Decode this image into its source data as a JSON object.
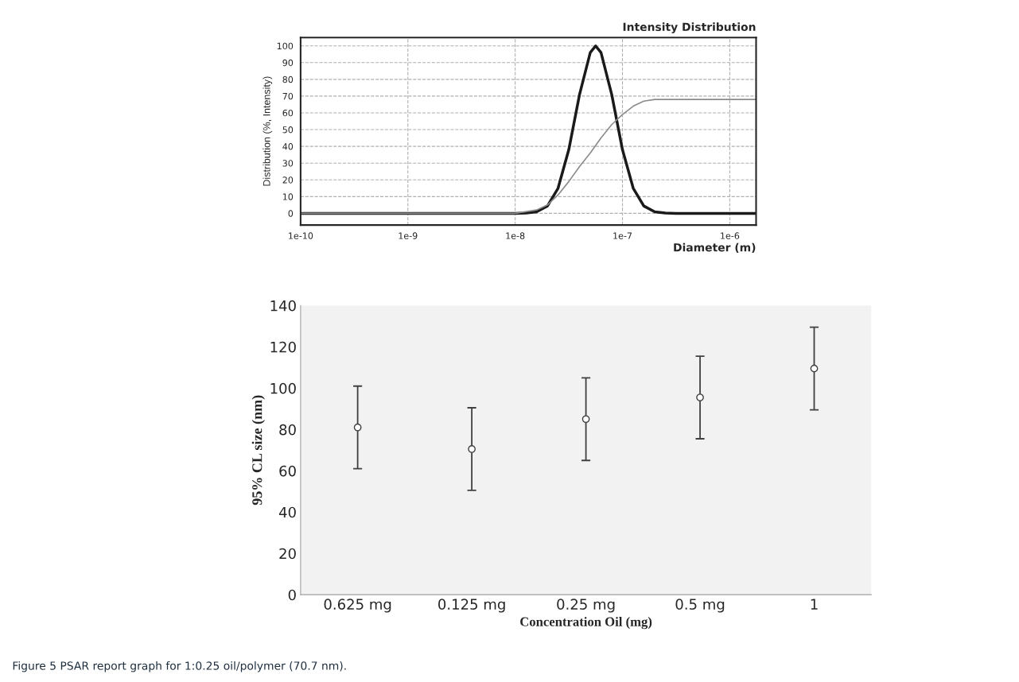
{
  "chart_data": [
    {
      "type": "line",
      "title": "Intensity Distribution",
      "xlabel": "Diameter (m)",
      "ylabel": "Distribution (%, Intensity)",
      "log": "x",
      "xlim": [
        1e-10,
        1.76e-06
      ],
      "xticks": [
        {
          "value": 1e-10,
          "label": "1e-10"
        },
        {
          "value": 1e-09,
          "label": "1e-9"
        },
        {
          "value": 1e-08,
          "label": "1e-8"
        },
        {
          "value": 1e-07,
          "label": "1e-7"
        },
        {
          "value": 1e-06,
          "label": "1e-6"
        }
      ],
      "ylim": [
        -7,
        105
      ],
      "yticks": [
        0,
        10,
        20,
        30,
        40,
        50,
        60,
        70,
        80,
        90,
        100
      ],
      "grid": true,
      "marker": "none",
      "series": [
        {
          "color": "#1a1a1a",
          "x": [
            1e-10,
            3.16e-09,
            1e-08,
            1.26e-08,
            1.58e-08,
            2e-08,
            2.51e-08,
            3.16e-08,
            3.98e-08,
            5.01e-08,
            5.62e-08,
            6.31e-08,
            7.94e-08,
            1e-07,
            1.26e-07,
            1.58e-07,
            2e-07,
            2.51e-07,
            3.16e-07,
            1.76e-06
          ],
          "values": [
            0,
            0,
            0,
            0.2,
            0.9,
            4.4,
            15,
            38,
            71,
            96,
            100,
            96,
            71,
            38,
            15,
            4.4,
            0.9,
            0.2,
            0,
            0
          ]
        },
        {
          "color": "#8c8c8c",
          "x": [
            1e-10,
            1e-08,
            1.58e-08,
            2e-08,
            2.51e-08,
            3.16e-08,
            3.98e-08,
            5.01e-08,
            6.31e-08,
            7.94e-08,
            1e-07,
            1.26e-07,
            1.58e-07,
            2e-07,
            1.76e-06
          ],
          "values": [
            0,
            0,
            2,
            5,
            11,
            19,
            28,
            36,
            45,
            53,
            59,
            64,
            67,
            68,
            68
          ]
        }
      ]
    },
    {
      "type": "scatter",
      "xlabel": "Concentration Oil (mg)",
      "ylabel": "95% CL size (nm)",
      "categories": [
        "0.625 mg",
        "0.125 mg",
        "0.25 mg",
        "0.5 mg",
        "1"
      ],
      "values": [
        81,
        70.5,
        85,
        95.5,
        109.5
      ],
      "errors": [
        20,
        20,
        20,
        20,
        20
      ],
      "ylim": [
        0,
        140
      ],
      "yticks": [
        0,
        20,
        40,
        60,
        80,
        100,
        120,
        140
      ],
      "grid": false,
      "marker": "circle",
      "color": "#404040",
      "annotations": [
        "Figure 5 PSAR report graph for 1:0.25 oil/polymer (70.7 nm)."
      ]
    }
  ]
}
